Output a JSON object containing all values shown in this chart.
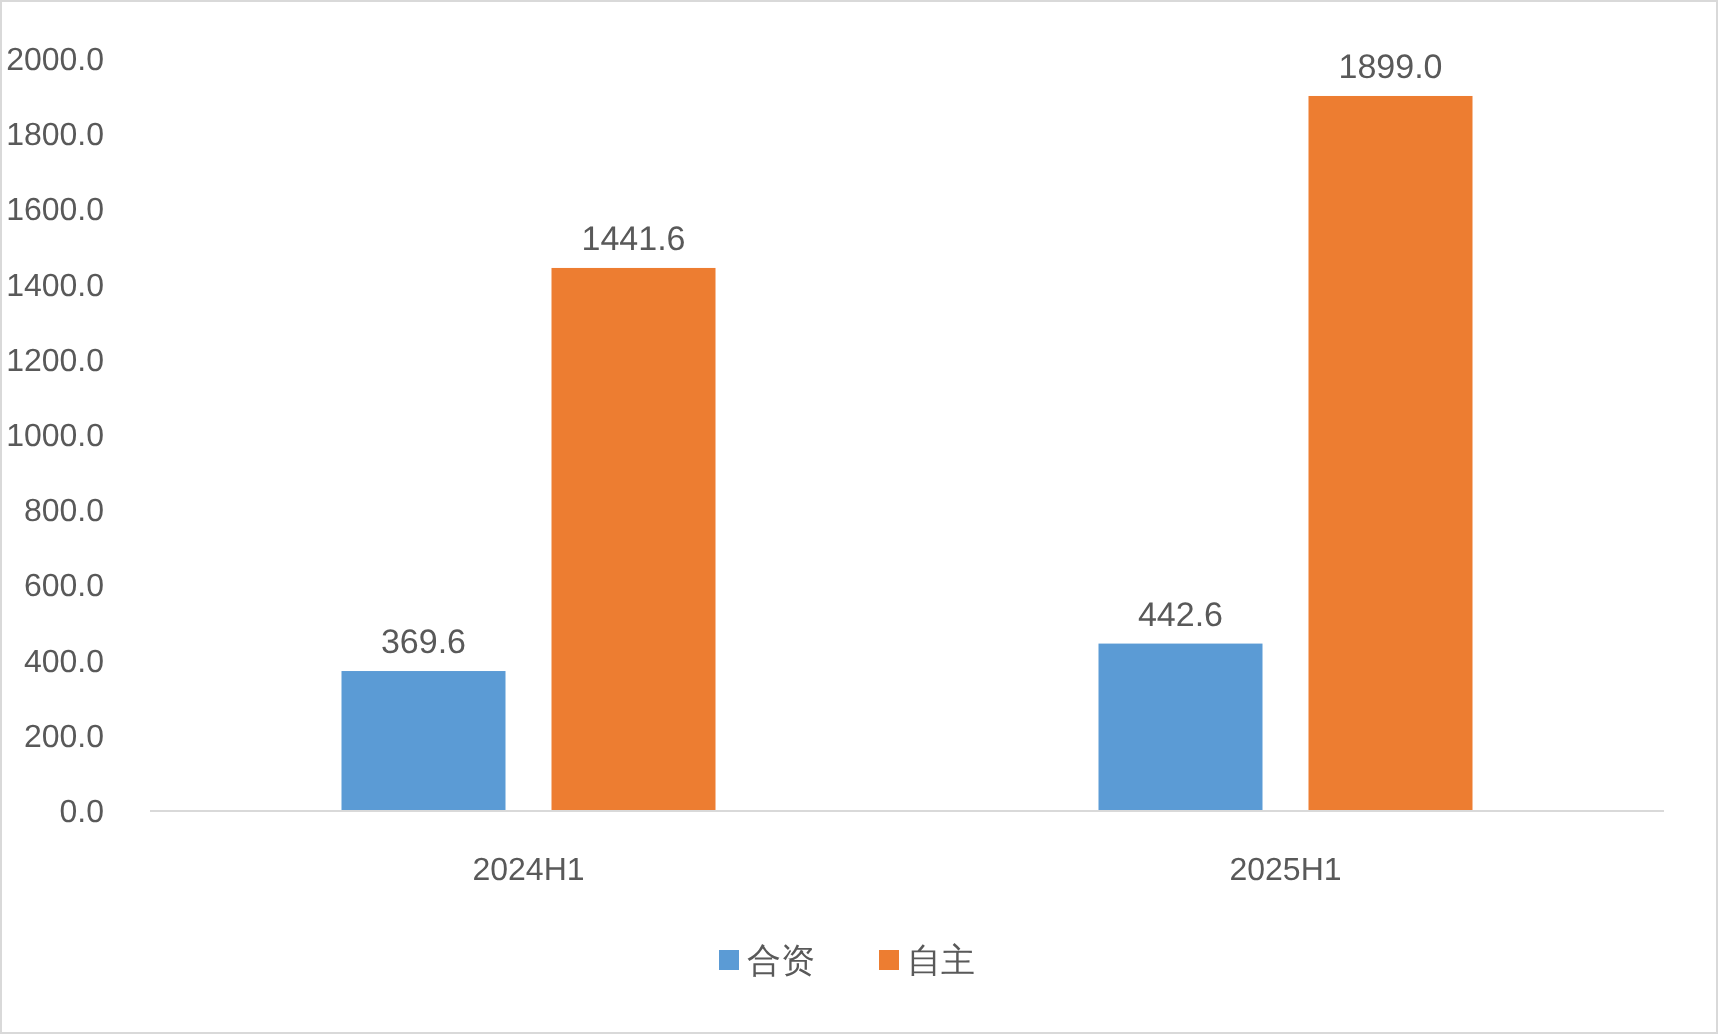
{
  "chart_data": {
    "type": "bar",
    "categories": [
      "2024H1",
      "2025H1"
    ],
    "series": [
      {
        "name": "合资",
        "color": "#5b9bd5",
        "values": [
          369.6,
          442.6
        ],
        "value_labels": [
          "369.6",
          "442.6"
        ]
      },
      {
        "name": "自主",
        "color": "#ed7d31",
        "values": [
          1441.6,
          1899.0
        ],
        "value_labels": [
          "1441.6",
          "1899.0"
        ]
      }
    ],
    "ylim": [
      0,
      2000
    ],
    "yticks": [
      {
        "value": 0,
        "label": "0.0"
      },
      {
        "value": 200,
        "label": "200.0"
      },
      {
        "value": 400,
        "label": "400.0"
      },
      {
        "value": 600,
        "label": "600.0"
      },
      {
        "value": 800,
        "label": "800.0"
      },
      {
        "value": 1000,
        "label": "1000.0"
      },
      {
        "value": 1200,
        "label": "1200.0"
      },
      {
        "value": 1400,
        "label": "1400.0"
      },
      {
        "value": 1600,
        "label": "1600.0"
      },
      {
        "value": 1800,
        "label": "1800.0"
      },
      {
        "value": 2000,
        "label": "2000.0"
      }
    ],
    "grid": false,
    "legend": "bottom"
  }
}
